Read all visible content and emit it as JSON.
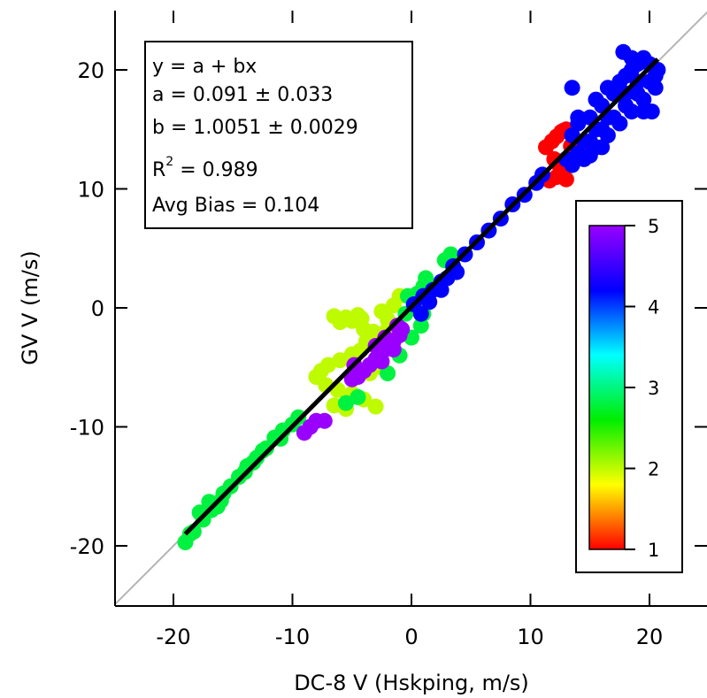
{
  "chart_data": {
    "type": "scatter",
    "xlabel": "DC-8 V (Hskping, m/s)",
    "ylabel": "GV V (m/s)",
    "xlim": [
      -25,
      25
    ],
    "ylim": [
      -25,
      25
    ],
    "x_ticks": [
      -20,
      -10,
      0,
      10,
      20
    ],
    "y_ticks": [
      -20,
      -10,
      0,
      10,
      20
    ],
    "x_tick_labels": [
      "-20",
      "-10",
      "0",
      "10",
      "20"
    ],
    "y_tick_labels": [
      "-20",
      "-10",
      "0",
      "10",
      "20"
    ],
    "grid": false,
    "one_to_one_line": {
      "x": [
        -25,
        25
      ],
      "y": [
        -25,
        25
      ],
      "color": "#b4b4b4"
    },
    "fit_line": {
      "intercept": 0.091,
      "slope": 1.0051,
      "x_range": [
        -19,
        20.7
      ],
      "color": "#000000"
    },
    "stats": [
      {
        "label": "y = a + bx"
      },
      {
        "label": "a = 0.091 ± 0.033"
      },
      {
        "label": "b = 1.0051 ± 0.0029"
      },
      {
        "label": "R",
        "superscript": "2",
        "suffix": " = 0.989"
      },
      {
        "label": "Avg Bias = 0.104"
      }
    ],
    "colorbar": {
      "min": 1,
      "max": 5,
      "ticks": [
        1,
        2,
        3,
        4,
        5
      ],
      "tick_labels": [
        "1",
        "2",
        "3",
        "4",
        "5"
      ],
      "colors": [
        "#ff0000",
        "#ffff00",
        "#00ee00",
        "#00ffff",
        "#0000ff",
        "#9a00ff"
      ],
      "placement": "lower-right"
    },
    "series": [
      {
        "color_value": 1.0,
        "points": [
          [
            11.3,
            13.5
          ],
          [
            11.8,
            14.0
          ],
          [
            12.2,
            14.4
          ],
          [
            12.6,
            14.8
          ],
          [
            13.0,
            15.0
          ],
          [
            12.0,
            12.5
          ],
          [
            12.5,
            11.8
          ],
          [
            13.0,
            10.8
          ],
          [
            11.6,
            10.7
          ],
          [
            12.2,
            11.0
          ],
          [
            13.4,
            13.6
          ],
          [
            12.8,
            14.9
          ]
        ]
      },
      {
        "color_value": 2.0,
        "points": [
          [
            -6.5,
            -0.7
          ],
          [
            -6.0,
            -1.2
          ],
          [
            -5.5,
            -0.8
          ],
          [
            -5.0,
            -1.1
          ],
          [
            -4.5,
            -0.6
          ],
          [
            -4.2,
            -0.9
          ],
          [
            -4.0,
            -1.8
          ],
          [
            -3.8,
            -2.8
          ],
          [
            -4.3,
            -3.6
          ],
          [
            -5.0,
            -3.9
          ],
          [
            -6.0,
            -4.4
          ],
          [
            -7.0,
            -4.8
          ],
          [
            -7.6,
            -5.3
          ],
          [
            -8.0,
            -5.8
          ],
          [
            -7.2,
            -6.5
          ],
          [
            -6.2,
            -6.9
          ],
          [
            -5.0,
            -7.2
          ],
          [
            -4.0,
            -7.7
          ],
          [
            -3.0,
            -8.3
          ],
          [
            -5.5,
            -8.5
          ],
          [
            -6.5,
            -8.2
          ],
          [
            -3.5,
            -5.5
          ],
          [
            -3.0,
            -4.5
          ],
          [
            -2.8,
            -3.0
          ],
          [
            -3.2,
            -2.0
          ],
          [
            -2.0,
            -1.0
          ],
          [
            -1.5,
            0.2
          ],
          [
            -1.0,
            1.0
          ],
          [
            -2.5,
            -0.3
          ],
          [
            -2.0,
            -1.8
          ],
          [
            -2.5,
            -5.0
          ]
        ]
      },
      {
        "color_value": 2.8,
        "points": [
          [
            -19.0,
            -19.7
          ],
          [
            -18.3,
            -18.8
          ],
          [
            -17.5,
            -17.8
          ],
          [
            -16.8,
            -17.0
          ],
          [
            -16.0,
            -16.2
          ],
          [
            -15.2,
            -15.0
          ],
          [
            -14.5,
            -14.2
          ],
          [
            -13.8,
            -13.3
          ],
          [
            -13.0,
            -12.6
          ],
          [
            -12.2,
            -11.8
          ],
          [
            -11.5,
            -10.9
          ],
          [
            -10.8,
            -10.3
          ],
          [
            -10.0,
            -9.8
          ],
          [
            -9.5,
            -9.2
          ],
          [
            -18.6,
            -19.0
          ],
          [
            -17.0,
            -16.3
          ],
          [
            -15.8,
            -15.6
          ],
          [
            -14.0,
            -13.8
          ],
          [
            -12.5,
            -12.0
          ],
          [
            -17.8,
            -17.2
          ],
          [
            -16.3,
            -16.7
          ],
          [
            -13.3,
            -13.0
          ],
          [
            -11.0,
            -11.0
          ],
          [
            -5.5,
            -8.0
          ],
          [
            -4.5,
            -7.5
          ],
          [
            -2.0,
            -5.5
          ],
          [
            -1.0,
            -4.0
          ],
          [
            0.0,
            -2.5
          ],
          [
            0.8,
            -1.5
          ],
          [
            1.0,
            -0.5
          ],
          [
            0.5,
            1.2
          ],
          [
            1.0,
            1.8
          ],
          [
            1.2,
            2.5
          ],
          [
            -0.5,
            -0.5
          ],
          [
            -0.3,
            1.0
          ],
          [
            -1.5,
            -3.5
          ],
          [
            2.8,
            4.0
          ],
          [
            3.3,
            4.5
          ]
        ]
      },
      {
        "color_value": 4.2,
        "points": [
          [
            0.2,
            0.3
          ],
          [
            1.0,
            1.0
          ],
          [
            1.8,
            1.5
          ],
          [
            2.5,
            2.2
          ],
          [
            3.5,
            3.5
          ],
          [
            4.5,
            4.5
          ],
          [
            5.5,
            5.5
          ],
          [
            6.5,
            6.5
          ],
          [
            7.5,
            7.5
          ],
          [
            8.5,
            8.7
          ],
          [
            9.5,
            9.5
          ],
          [
            10.5,
            10.5
          ],
          [
            11.0,
            11.2
          ],
          [
            1.5,
            0.5
          ],
          [
            2.5,
            1.5
          ],
          [
            3.8,
            3.0
          ],
          [
            0.8,
            -0.5
          ],
          [
            3.0,
            2.5
          ],
          [
            13.0,
            12.5
          ],
          [
            13.5,
            12.0
          ],
          [
            14.0,
            13.0
          ],
          [
            14.5,
            12.5
          ],
          [
            15.0,
            14.0
          ],
          [
            15.5,
            13.5
          ],
          [
            16.0,
            15.0
          ],
          [
            16.5,
            14.5
          ],
          [
            17.0,
            16.0
          ],
          [
            17.5,
            15.5
          ],
          [
            18.0,
            17.0
          ],
          [
            18.5,
            16.5
          ],
          [
            19.0,
            18.0
          ],
          [
            19.5,
            17.5
          ],
          [
            20.0,
            19.0
          ],
          [
            20.5,
            19.5
          ],
          [
            20.7,
            20.0
          ],
          [
            13.5,
            14.5
          ],
          [
            14.0,
            15.5
          ],
          [
            15.0,
            16.0
          ],
          [
            16.0,
            17.0
          ],
          [
            17.0,
            18.0
          ],
          [
            17.5,
            19.0
          ],
          [
            18.0,
            19.5
          ],
          [
            18.5,
            20.0
          ],
          [
            19.0,
            20.5
          ],
          [
            17.8,
            21.5
          ],
          [
            18.5,
            21.0
          ],
          [
            19.5,
            21.0
          ],
          [
            20.0,
            20.5
          ],
          [
            13.5,
            18.5
          ],
          [
            14.0,
            16.0
          ],
          [
            15.5,
            15.0
          ],
          [
            16.5,
            16.0
          ],
          [
            19.5,
            16.5
          ],
          [
            20.2,
            16.5
          ],
          [
            14.5,
            14.0
          ],
          [
            16.0,
            13.5
          ],
          [
            15.0,
            12.8
          ],
          [
            18.0,
            18.0
          ],
          [
            19.0,
            19.0
          ],
          [
            15.5,
            17.5
          ],
          [
            16.5,
            18.5
          ],
          [
            20.5,
            18.5
          ]
        ]
      },
      {
        "color_value": 5.0,
        "points": [
          [
            -9.0,
            -10.5
          ],
          [
            -8.5,
            -10.0
          ],
          [
            -8.0,
            -9.5
          ],
          [
            -7.3,
            -9.5
          ],
          [
            -4.5,
            -5.8
          ],
          [
            -4.0,
            -5.3
          ],
          [
            -3.5,
            -4.8
          ],
          [
            -3.0,
            -4.3
          ],
          [
            -2.5,
            -3.8
          ],
          [
            -2.0,
            -3.3
          ],
          [
            -1.5,
            -2.8
          ],
          [
            -1.0,
            -2.3
          ],
          [
            -0.8,
            -1.8
          ],
          [
            -1.2,
            -1.5
          ],
          [
            -2.2,
            -2.5
          ],
          [
            -3.0,
            -3.2
          ],
          [
            -1.5,
            -3.5
          ],
          [
            -2.5,
            -4.5
          ],
          [
            -4.8,
            -4.8
          ],
          [
            -5.0,
            -6.0
          ]
        ]
      }
    ]
  }
}
